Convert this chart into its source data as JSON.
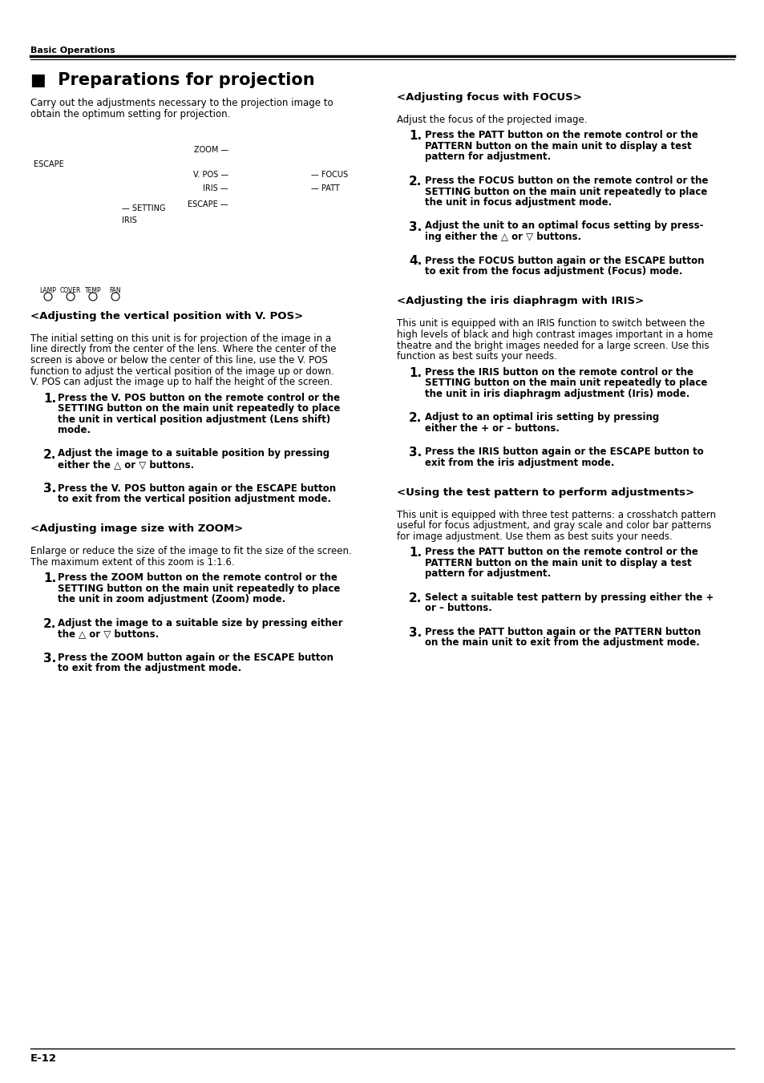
{
  "page_bg": "#ffffff",
  "text_color": "#000000",
  "header_section": "Basic Operations",
  "title": "■  Preparations for projection",
  "intro_line1": "Carry out the adjustments necessary to the projection image to",
  "intro_line2": "obtain the optimum setting for projection.",
  "footer_text": "E-12",
  "left_sections": [
    {
      "heading": "<Adjusting the vertical position with V. POS>",
      "body_lines": [
        "The initial setting on this unit is for projection of the image in a",
        "line directly from the center of the lens. Where the center of the",
        "screen is above or below the center of this line, use the V. POS",
        "function to adjust the vertical position of the image up or down.",
        "V. POS can adjust the image up to half the height of the screen."
      ],
      "steps": [
        {
          "num": "1.",
          "lines": [
            "Press the V. POS button on the remote control or the",
            "SETTING button on the main unit repeatedly to place",
            "the unit in vertical position adjustment (Lens shift)",
            "mode."
          ]
        },
        {
          "num": "2.",
          "lines": [
            "Adjust the image to a suitable position by pressing",
            "either the △ or ▽ buttons."
          ]
        },
        {
          "num": "3.",
          "lines": [
            "Press the V. POS button again or the ESCAPE button",
            "to exit from the vertical position adjustment mode."
          ]
        }
      ]
    },
    {
      "heading": "<Adjusting image size with ZOOM>",
      "body_lines": [
        "Enlarge or reduce the size of the image to fit the size of the screen.",
        "The maximum extent of this zoom is 1:1.6."
      ],
      "steps": [
        {
          "num": "1.",
          "lines": [
            "Press the ZOOM button on the remote control or the",
            "SETTING button on the main unit repeatedly to place",
            "the unit in zoom adjustment (Zoom) mode."
          ]
        },
        {
          "num": "2.",
          "lines": [
            "Adjust the image to a suitable size by pressing either",
            "the △ or ▽ buttons."
          ]
        },
        {
          "num": "3.",
          "lines": [
            "Press the ZOOM button again or the ESCAPE button",
            "to exit from the adjustment mode."
          ]
        }
      ]
    }
  ],
  "right_sections": [
    {
      "heading": "<Adjusting focus with FOCUS>",
      "body_lines": [
        "Adjust the focus of the projected image."
      ],
      "steps": [
        {
          "num": "1.",
          "lines": [
            "Press the PATT button on the remote control or the",
            "PATTERN button on the main unit to display a test",
            "pattern for adjustment."
          ]
        },
        {
          "num": "2.",
          "lines": [
            "Press the FOCUS button on the remote control or the",
            "SETTING button on the main unit repeatedly to place",
            "the unit in focus adjustment mode."
          ]
        },
        {
          "num": "3.",
          "lines": [
            "Adjust the unit to an optimal focus setting by press-",
            "ing either the △ or ▽ buttons."
          ]
        },
        {
          "num": "4.",
          "lines": [
            "Press the FOCUS button again or the ESCAPE button",
            "to exit from the focus adjustment (Focus) mode."
          ]
        }
      ]
    },
    {
      "heading": "<Adjusting the iris diaphragm with IRIS>",
      "body_lines": [
        "This unit is equipped with an IRIS function to switch between the",
        "high levels of black and high contrast images important in a home",
        "theatre and the bright images needed for a large screen. Use this",
        "function as best suits your needs."
      ],
      "steps": [
        {
          "num": "1.",
          "lines": [
            "Press the IRIS button on the remote control or the",
            "SETTING button on the main unit repeatedly to place",
            "the unit in iris diaphragm adjustment (Iris) mode."
          ]
        },
        {
          "num": "2.",
          "lines": [
            "Adjust to an optimal iris setting by pressing",
            "either the + or – buttons."
          ]
        },
        {
          "num": "3.",
          "lines": [
            "Press the IRIS button again or the ESCAPE button to",
            "exit from the iris adjustment mode."
          ]
        }
      ]
    },
    {
      "heading": "<Using the test pattern to perform adjustments>",
      "body_lines": [
        "This unit is equipped with three test patterns: a crosshatch pattern",
        "useful for focus adjustment, and gray scale and color bar patterns",
        "for image adjustment. Use them as best suits your needs."
      ],
      "steps": [
        {
          "num": "1.",
          "lines": [
            "Press the PATT button on the remote control or the",
            "PATTERN button on the main unit to display a test",
            "pattern for adjustment."
          ]
        },
        {
          "num": "2.",
          "lines": [
            "Select a suitable test pattern by pressing either the +",
            "or – buttons."
          ]
        },
        {
          "num": "3.",
          "lines": [
            "Press the PATT button again or the PATTERN button",
            "on the main unit to exit from the adjustment mode."
          ]
        }
      ]
    }
  ]
}
